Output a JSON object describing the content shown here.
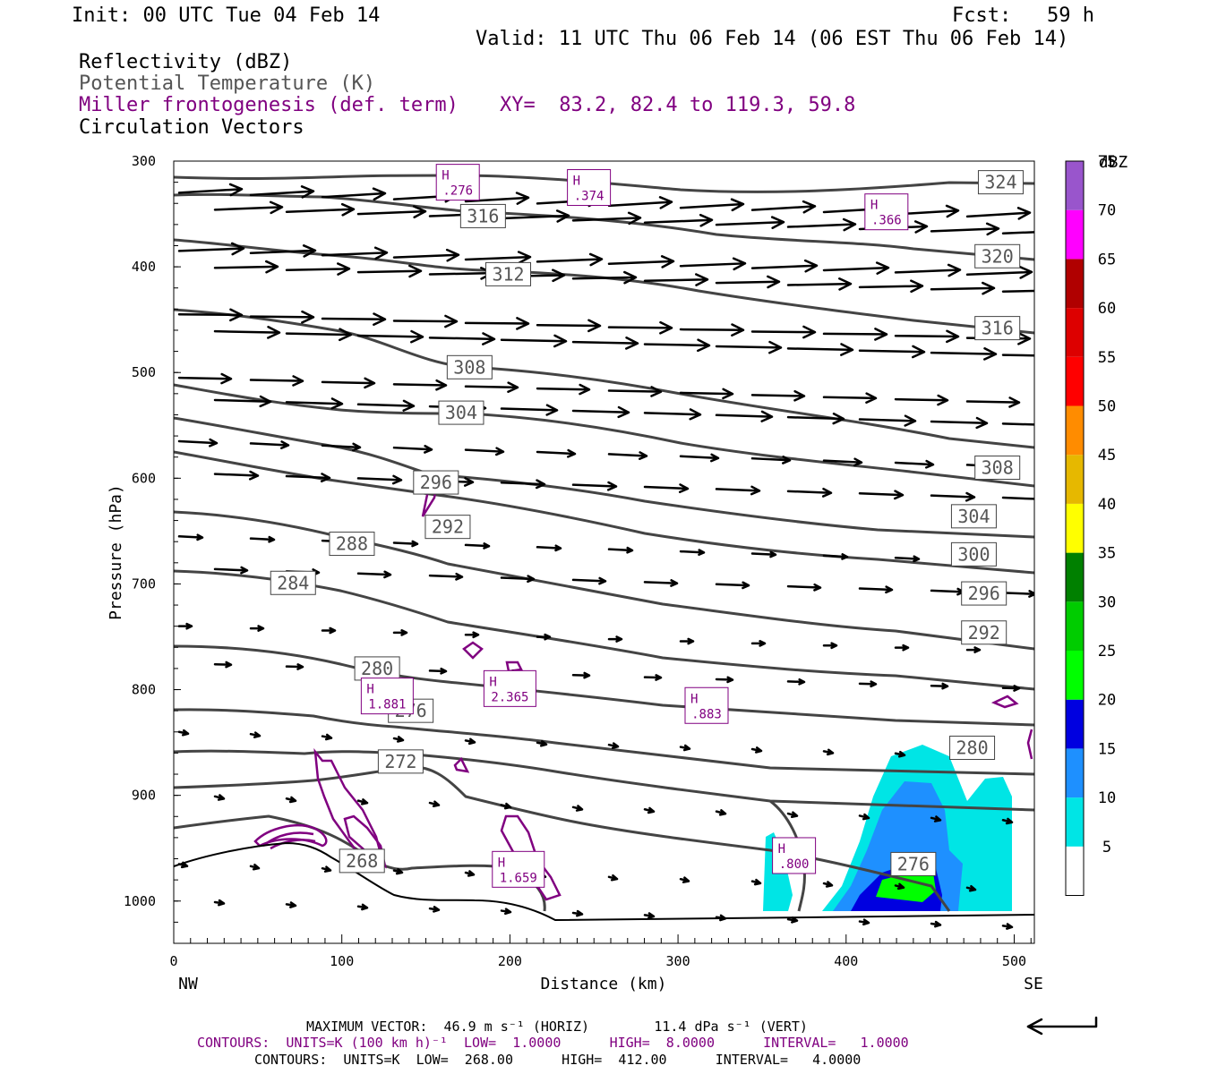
{
  "header": {
    "init": "Init: 00 UTC Tue 04 Feb 14",
    "fcst": "Fcst:   59 h",
    "valid": "Valid: 11 UTC Thu 06 Feb 14 (06 EST Thu 06 Feb 14)"
  },
  "fields": {
    "reflectivity": "Reflectivity (dBZ)",
    "theta": "Potential Temperature (K)",
    "frontogenesis": "Miller frontogenesis (def. term)",
    "xy": "XY=  83.2, 82.4 to 119.3, 59.8",
    "vectors": "Circulation Vectors"
  },
  "footer": {
    "max_vector": "MAXIMUM VECTOR:  46.9 m s⁻¹ (HORIZ)        11.4 dPa s⁻¹ (VERT)",
    "contours_fronto": "CONTOURS:  UNITS=K (100 km h)⁻¹  LOW=  1.0000      HIGH=  8.0000      INTERVAL=   1.0000",
    "contours_theta": "CONTOURS:  UNITS=K  LOW=  268.00      HIGH=  412.00      INTERVAL=   4.0000"
  },
  "colors": {
    "theta": "#444444",
    "fronto": "#800080",
    "vectors": "#000000"
  },
  "chart_data": {
    "type": "contour-cross-section",
    "xlabel": "Distance (km)",
    "ylabel": "Pressure (hPa)",
    "x_left_label": "NW",
    "x_right_label": "SE",
    "xlim": [
      0,
      512
    ],
    "ylim": [
      1040,
      300
    ],
    "x_ticks": [
      "0",
      "100",
      "200",
      "300",
      "400",
      "500"
    ],
    "y_ticks": [
      "300",
      "400",
      "500",
      "600",
      "700",
      "800",
      "900",
      "1000"
    ],
    "colorbar": {
      "unit": "dBZ",
      "levels": [
        "5",
        "10",
        "15",
        "20",
        "25",
        "30",
        "35",
        "40",
        "45",
        "50",
        "55",
        "60",
        "65",
        "70",
        "75"
      ],
      "colors": [
        "#ffffff",
        "#00e5e5",
        "#1e90ff",
        "#0000e0",
        "#00ff00",
        "#00cc00",
        "#008000",
        "#ffff00",
        "#e6b800",
        "#ff8c00",
        "#ff0000",
        "#dd0000",
        "#b00000",
        "#ff00ff",
        "#9955cc"
      ]
    },
    "theta_labels": [
      {
        "value": "324",
        "x": 492,
        "p": 320
      },
      {
        "value": "316",
        "x": 184,
        "p": 352
      },
      {
        "value": "320",
        "x": 490,
        "p": 390
      },
      {
        "value": "312",
        "x": 199,
        "p": 407
      },
      {
        "value": "316",
        "x": 490,
        "p": 458
      },
      {
        "value": "308",
        "x": 176,
        "p": 495
      },
      {
        "value": "304",
        "x": 171,
        "p": 538
      },
      {
        "value": "308",
        "x": 490,
        "p": 590
      },
      {
        "value": "296",
        "x": 156,
        "p": 604
      },
      {
        "value": "304",
        "x": 476,
        "p": 636
      },
      {
        "value": "292",
        "x": 163,
        "p": 646
      },
      {
        "value": "288",
        "x": 106,
        "p": 662
      },
      {
        "value": "300",
        "x": 476,
        "p": 672
      },
      {
        "value": "284",
        "x": 71,
        "p": 699
      },
      {
        "value": "296",
        "x": 482,
        "p": 709
      },
      {
        "value": "292",
        "x": 482,
        "p": 746
      },
      {
        "value": "280",
        "x": 121,
        "p": 780
      },
      {
        "value": "276",
        "x": 141,
        "p": 820
      },
      {
        "value": "280",
        "x": 475,
        "p": 855
      },
      {
        "value": "272",
        "x": 135,
        "p": 868
      },
      {
        "value": "268",
        "x": 112,
        "p": 962
      },
      {
        "value": "276",
        "x": 440,
        "p": 965
      }
    ],
    "fronto_maxima": [
      {
        "label": "H",
        "value": ".276",
        "x": 169,
        "p": 320
      },
      {
        "label": "H",
        "value": ".374",
        "x": 247,
        "p": 325
      },
      {
        "label": "H",
        "value": ".366",
        "x": 424,
        "p": 348
      },
      {
        "label": "H",
        "value": "1.881",
        "x": 127,
        "p": 806
      },
      {
        "label": "H",
        "value": "2.365",
        "x": 200,
        "p": 799
      },
      {
        "label": "H",
        "value": ".883",
        "x": 317,
        "p": 815
      },
      {
        "label": "H",
        "value": ".800",
        "x": 369,
        "p": 957
      },
      {
        "label": "H",
        "value": "1.659",
        "x": 205,
        "p": 970
      }
    ]
  }
}
